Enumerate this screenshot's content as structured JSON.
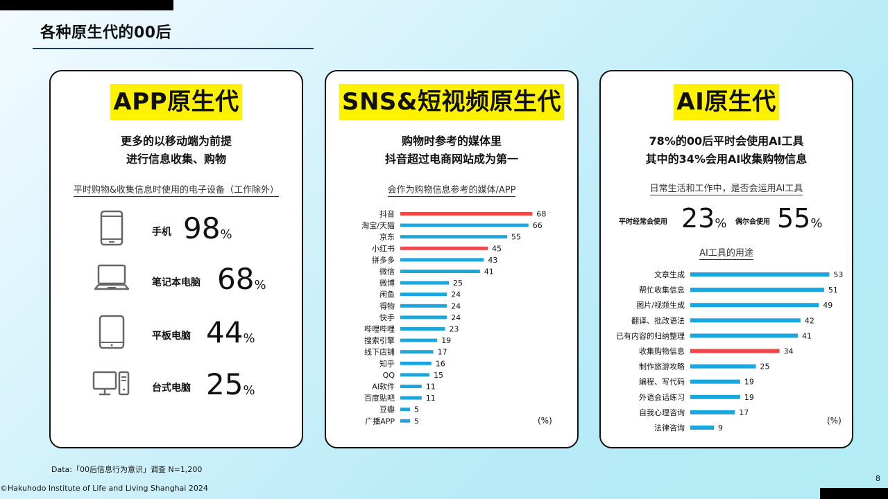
{
  "page": {
    "title": "各种原生代的00后",
    "footnote": "Data:「00后信息行为意识」调查 N=1,200",
    "copyright": "©Hakuhodo Institute of Life and Living Shanghai 2024",
    "page_number": "8"
  },
  "colors": {
    "highlight": "#fff200",
    "bar": "#1aa7e0",
    "bar_accent": "#f0484a",
    "frame": "#111111"
  },
  "app_panel": {
    "title": "APP原生代",
    "subtitle_line1": "更多的以移动端为前提",
    "subtitle_line2": "进行信息收集、购物",
    "caption": "平时购物&收集信息时使用的电子设备（工作除外）",
    "percent_sign": "%",
    "devices": [
      {
        "label": "手机",
        "value": "98",
        "icon": "smartphone-icon"
      },
      {
        "label": "笔记本电脑",
        "value": "68",
        "icon": "laptop-icon"
      },
      {
        "label": "平板电脑",
        "value": "44",
        "icon": "tablet-icon"
      },
      {
        "label": "台式电脑",
        "value": "25",
        "icon": "desktop-icon"
      }
    ]
  },
  "sns_panel": {
    "title": "SNS&短视频原生代",
    "subtitle_line1": "购物时参考的媒体里",
    "subtitle_line2": "抖音超过电商网站成为第一"
  },
  "ai_panel": {
    "title": "AI原生代",
    "subtitle_line1": "78%的00后平时会使用AI工具",
    "subtitle_line2": "其中的34%会用AI收集购物信息",
    "caption": "日常生活和工作中，是否会运用AI工具",
    "usage": [
      {
        "label": "平时经常会使用",
        "value": "23"
      },
      {
        "label": "偶尔会使用",
        "value": "55"
      }
    ],
    "percent_sign": "%"
  },
  "chart_data": [
    {
      "type": "bar",
      "orientation": "horizontal",
      "title": "会作为购物信息参考的媒体/APP",
      "unit": "(%)",
      "categories": [
        "抖音",
        "淘宝/天猫",
        "京东",
        "小红书",
        "拼多多",
        "微信",
        "微博",
        "闲鱼",
        "得物",
        "快手",
        "哔哩哔哩",
        "搜索引擎",
        "线下店铺",
        "知乎",
        "QQ",
        "AI软件",
        "百度贴吧",
        "豆瓣",
        "广播APP"
      ],
      "values": [
        68,
        66,
        55,
        45,
        43,
        41,
        25,
        24,
        24,
        24,
        23,
        19,
        17,
        16,
        15,
        11,
        11,
        5,
        5
      ],
      "highlighted": [
        "抖音",
        "小红书"
      ],
      "xlim": [
        0,
        70
      ],
      "grid": false
    },
    {
      "type": "bar",
      "orientation": "horizontal",
      "title": "AI工具的用途",
      "unit": "(%)",
      "categories": [
        "文章生成",
        "帮忙收集信息",
        "图片/视频生成",
        "翻译、批改语法",
        "已有内容的归纳整理",
        "收集购物信息",
        "制作旅游攻略",
        "编程、写代码",
        "外语会话练习",
        "自我心理咨询",
        "法律咨询"
      ],
      "values": [
        53,
        51,
        49,
        42,
        41,
        34,
        25,
        19,
        19,
        17,
        9
      ],
      "highlighted": [
        "收集购物信息"
      ],
      "xlim": [
        0,
        55
      ],
      "grid": false
    }
  ]
}
